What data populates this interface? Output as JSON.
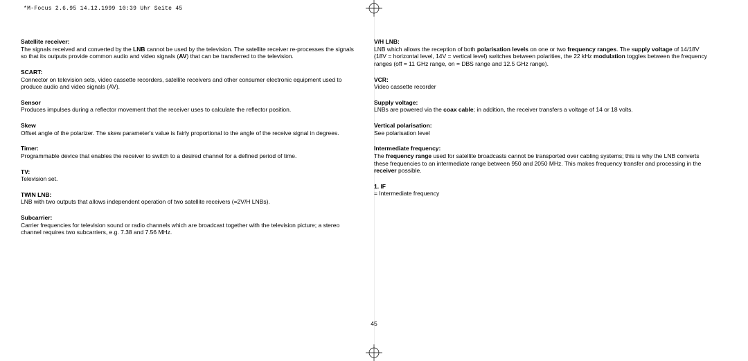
{
  "header": "*M-Focus 2.6.95  14.12.1999 10:39 Uhr  Seite 45",
  "page_number": "45",
  "left": [
    {
      "term": "Satellite receiver:",
      "desc": "The signals received and converted by the <b>LNB</b> cannot be used by the television. The satellite receiver re-processes the signals so that its outputs provide common audio and video signals (<b>AV</b>) that can be transferred to the television."
    },
    {
      "term": "SCART:",
      "desc": "Connector on television sets, video cassette recorders, satellite receivers and other consumer electronic equipment used to produce audio and video signals (AV)."
    },
    {
      "term": "Sensor",
      "desc": "Produces impulses during a reflector movement that the receiver uses to calculate the reflector position."
    },
    {
      "term": "Skew",
      "desc": "Offset angle of the polarizer. The skew parameter's value is fairly proportional to the angle of the receive signal in degrees."
    },
    {
      "term": "Timer:",
      "desc": "Programmable device that enables the receiver to switch to a desired channel  for a defined period of time."
    },
    {
      "term": "TV:",
      "desc": "Television set."
    },
    {
      "term": "TWIN LNB:",
      "desc": "LNB with two outputs that allows independent operation of two satellite receivers (=2V/H LNBs)."
    },
    {
      "term": "Subcarrier:",
      "desc": "Carrier frequencies for television sound or radio channels which are broadcast together with the television picture; a stereo channel requires two subcarriers, e.g. 7.38 and 7.56 MHz."
    }
  ],
  "right": [
    {
      "term": "V/H LNB:",
      "desc": "LNB which allows the reception of both <b>polarisation levels</b> on one or two <b>frequency ranges</b>. The s<b>upply voltage</b> of 14/18V (18V = horizontal level, 14V = vertical level) switches between polarities, the 22 kHz <b>modulation</b> toggles between the frequency ranges (off = 11 GHz range, on = DBS range and 12.5 GHz range)."
    },
    {
      "term": "VCR:",
      "desc": "Video cassette recorder"
    },
    {
      "term": "Supply voltage:",
      "desc": "LNBs are powered via the <b>coax cable</b>; in addition, the receiver transfers a voltage of 14 or 18 volts."
    },
    {
      "term": "Vertical polarisation:",
      "desc": "See polarisation level"
    },
    {
      "term": "Intermediate frequency:",
      "desc": "The <b>frequency range</b> used for satellite broadcasts cannot be transported over cabling systems; this is why the LNB converts these frequencies to an intermediate range between 950 and 2050 MHz. This makes frequency transfer and processing in the <b>receiver</b> possible."
    },
    {
      "term": "1. IF",
      "desc": "= Intermediate frequency"
    }
  ]
}
